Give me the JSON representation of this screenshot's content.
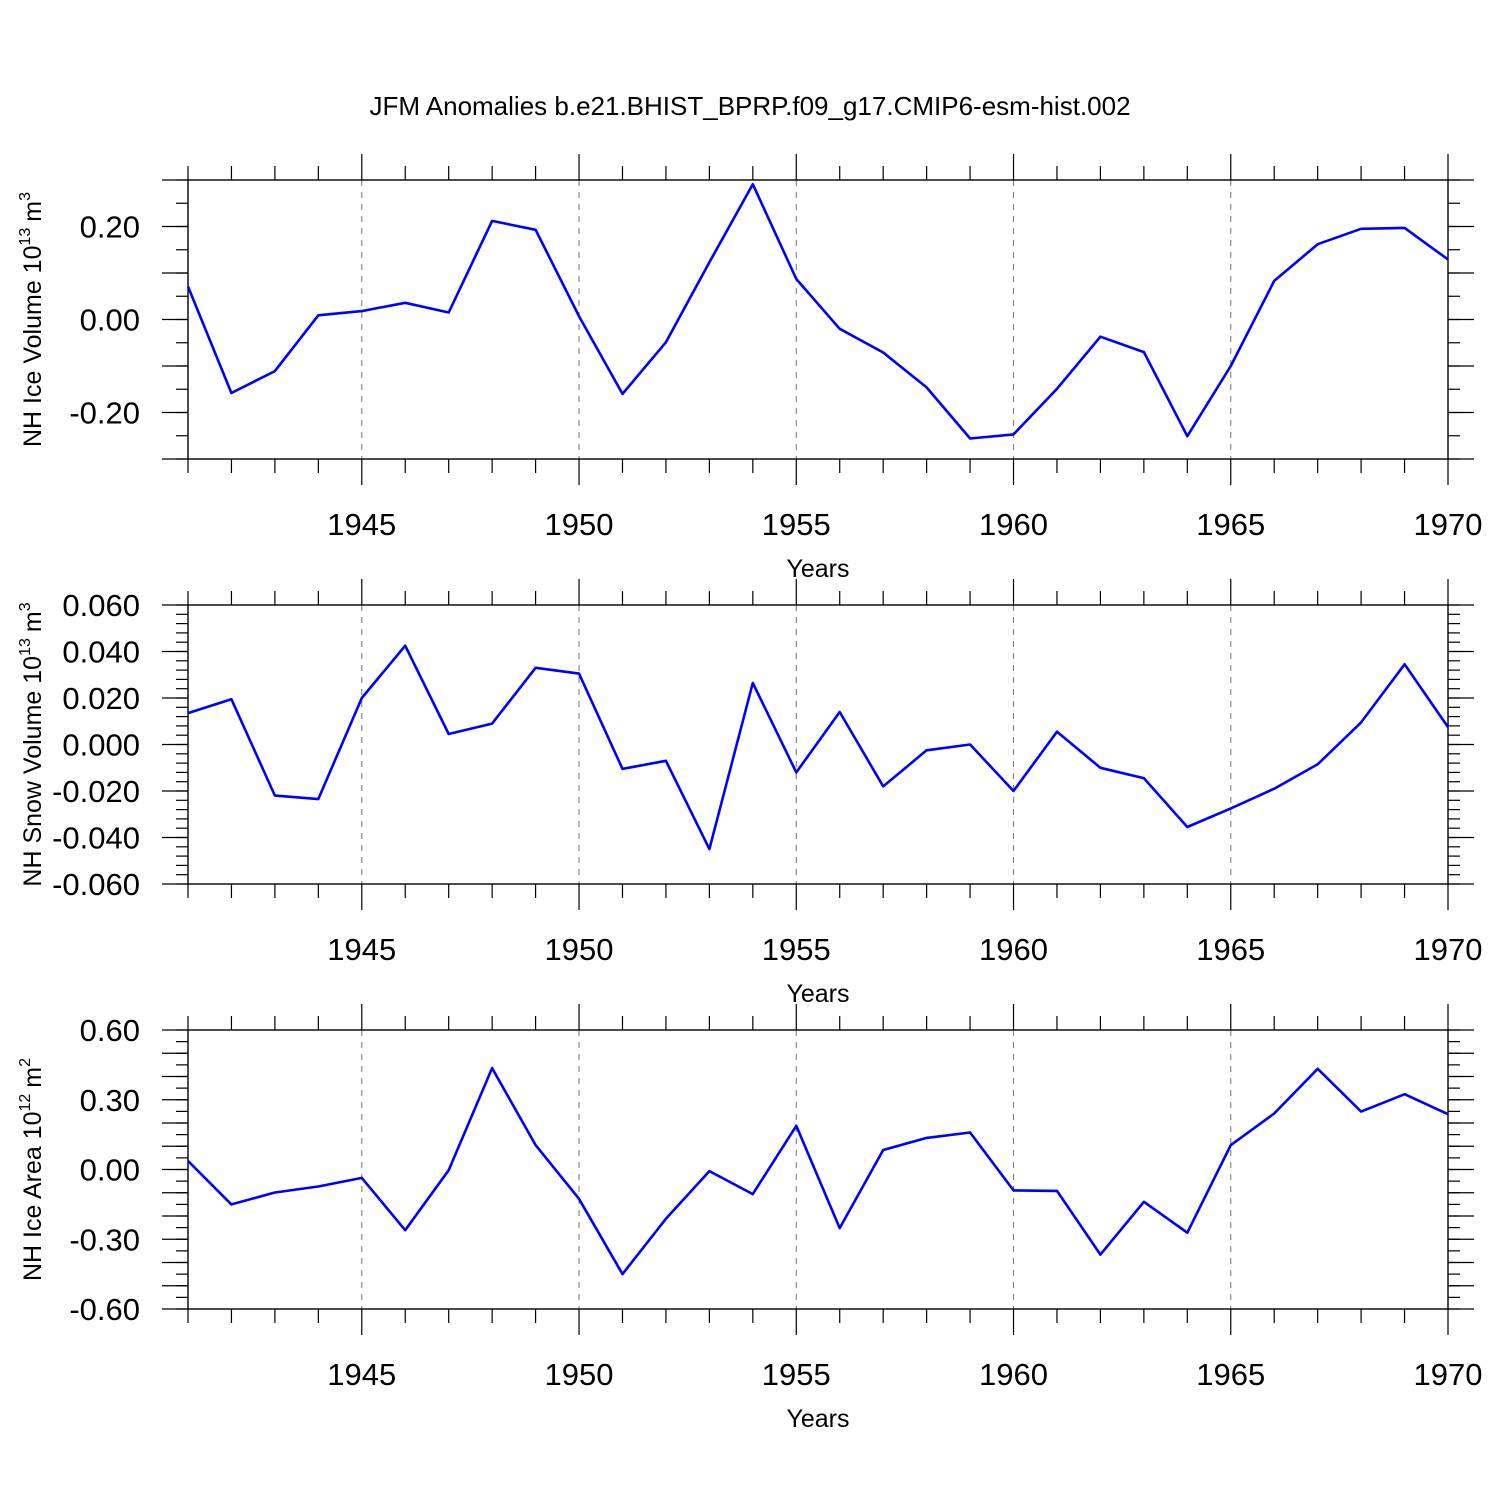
{
  "figure_title": "JFM Anomalies b.e21.BHIST_BPRP.f09_g17.CMIP6-esm-hist.002",
  "line_color": "#0000ff",
  "chart_data": [
    {
      "type": "line",
      "ylabel_main": "NH Ice Volume 10",
      "ylabel_exp": "13",
      "ylabel_unit": "m",
      "ylabel_unit_exp": "3",
      "xlabel": "Years",
      "xlim": [
        1941,
        1970
      ],
      "ylim": [
        -0.3,
        0.3
      ],
      "xticks": [
        1945,
        1950,
        1955,
        1960,
        1965,
        1970
      ],
      "xtick_labels": [
        "1945",
        "1950",
        "1955",
        "1960",
        "1965",
        "1970"
      ],
      "yticks": [
        0.2,
        0.0,
        -0.2
      ],
      "ytick_labels": [
        "0.20",
        "0.00",
        "-0.20"
      ],
      "ymajor_step": 0.1,
      "yminor_step": 0.05,
      "grid_x": [
        1945,
        1950,
        1955,
        1960,
        1965
      ],
      "x": [
        1941,
        1942,
        1943,
        1944,
        1945,
        1946,
        1947,
        1948,
        1949,
        1950,
        1951,
        1952,
        1953,
        1954,
        1955,
        1956,
        1957,
        1958,
        1959,
        1960,
        1961,
        1962,
        1963,
        1964,
        1965,
        1966,
        1967,
        1968,
        1969,
        1970
      ],
      "values": [
        0.071,
        -0.158,
        -0.111,
        0.009,
        0.018,
        0.036,
        0.015,
        0.212,
        0.193,
        0.007,
        -0.16,
        -0.049,
        0.123,
        0.291,
        0.087,
        -0.02,
        -0.071,
        -0.146,
        -0.256,
        -0.247,
        -0.149,
        -0.037,
        -0.07,
        -0.251,
        -0.1,
        0.083,
        0.162,
        0.195,
        0.197,
        0.129
      ]
    },
    {
      "type": "line",
      "ylabel_main": "NH Snow Volume 10",
      "ylabel_exp": "13",
      "ylabel_unit": "m",
      "ylabel_unit_exp": "3",
      "xlabel": "Years",
      "xlim": [
        1941,
        1970
      ],
      "ylim": [
        -0.06,
        0.06
      ],
      "xticks": [
        1945,
        1950,
        1955,
        1960,
        1965,
        1970
      ],
      "xtick_labels": [
        "1945",
        "1950",
        "1955",
        "1960",
        "1965",
        "1970"
      ],
      "yticks": [
        0.06,
        0.04,
        0.02,
        0.0,
        -0.02,
        -0.04,
        -0.06
      ],
      "ytick_labels": [
        "0.060",
        "0.040",
        "0.020",
        "0.000",
        "-0.020",
        "-0.040",
        "-0.060"
      ],
      "ymajor_step": 0.02,
      "yminor_step": 0.004,
      "grid_x": [
        1945,
        1950,
        1955,
        1960,
        1965
      ],
      "x": [
        1941,
        1942,
        1943,
        1944,
        1945,
        1946,
        1947,
        1948,
        1949,
        1950,
        1951,
        1952,
        1953,
        1954,
        1955,
        1956,
        1957,
        1958,
        1959,
        1960,
        1961,
        1962,
        1963,
        1964,
        1965,
        1966,
        1967,
        1968,
        1969,
        1970
      ],
      "values": [
        0.0135,
        0.0195,
        -0.022,
        -0.0235,
        0.02,
        0.0425,
        0.0045,
        0.009,
        0.033,
        0.0305,
        -0.0105,
        -0.007,
        -0.045,
        0.0265,
        -0.012,
        0.014,
        -0.018,
        -0.0025,
        0.0,
        -0.02,
        0.0055,
        -0.01,
        -0.0145,
        -0.0355,
        -0.0275,
        -0.019,
        -0.0085,
        0.0095,
        0.0345,
        0.0075
      ]
    },
    {
      "type": "line",
      "ylabel_main": "NH Ice Area 10",
      "ylabel_exp": "12",
      "ylabel_unit": "m",
      "ylabel_unit_exp": "2",
      "xlabel": "Years",
      "xlim": [
        1941,
        1970
      ],
      "ylim": [
        -0.6,
        0.6
      ],
      "xticks": [
        1945,
        1950,
        1955,
        1960,
        1965,
        1970
      ],
      "xtick_labels": [
        "1945",
        "1950",
        "1955",
        "1960",
        "1965",
        "1970"
      ],
      "yticks": [
        0.6,
        0.3,
        0.0,
        -0.3,
        -0.6
      ],
      "ytick_labels": [
        "0.60",
        "0.30",
        "0.00",
        "-0.30",
        "-0.60"
      ],
      "ymajor_step": 0.1,
      "yminor_step": 0.05,
      "grid_x": [
        1945,
        1950,
        1955,
        1960,
        1965
      ],
      "x": [
        1941,
        1942,
        1943,
        1944,
        1945,
        1946,
        1947,
        1948,
        1949,
        1950,
        1951,
        1952,
        1953,
        1954,
        1955,
        1956,
        1957,
        1958,
        1959,
        1960,
        1961,
        1962,
        1963,
        1964,
        1965,
        1966,
        1967,
        1968,
        1969,
        1970
      ],
      "values": [
        0.037,
        -0.15,
        -0.099,
        -0.073,
        -0.036,
        -0.261,
        -0.003,
        0.436,
        0.105,
        -0.126,
        -0.45,
        -0.212,
        -0.007,
        -0.106,
        0.188,
        -0.252,
        0.084,
        0.136,
        0.159,
        -0.09,
        -0.092,
        -0.366,
        -0.139,
        -0.272,
        0.105,
        0.241,
        0.433,
        0.249,
        0.324,
        0.238
      ]
    }
  ]
}
